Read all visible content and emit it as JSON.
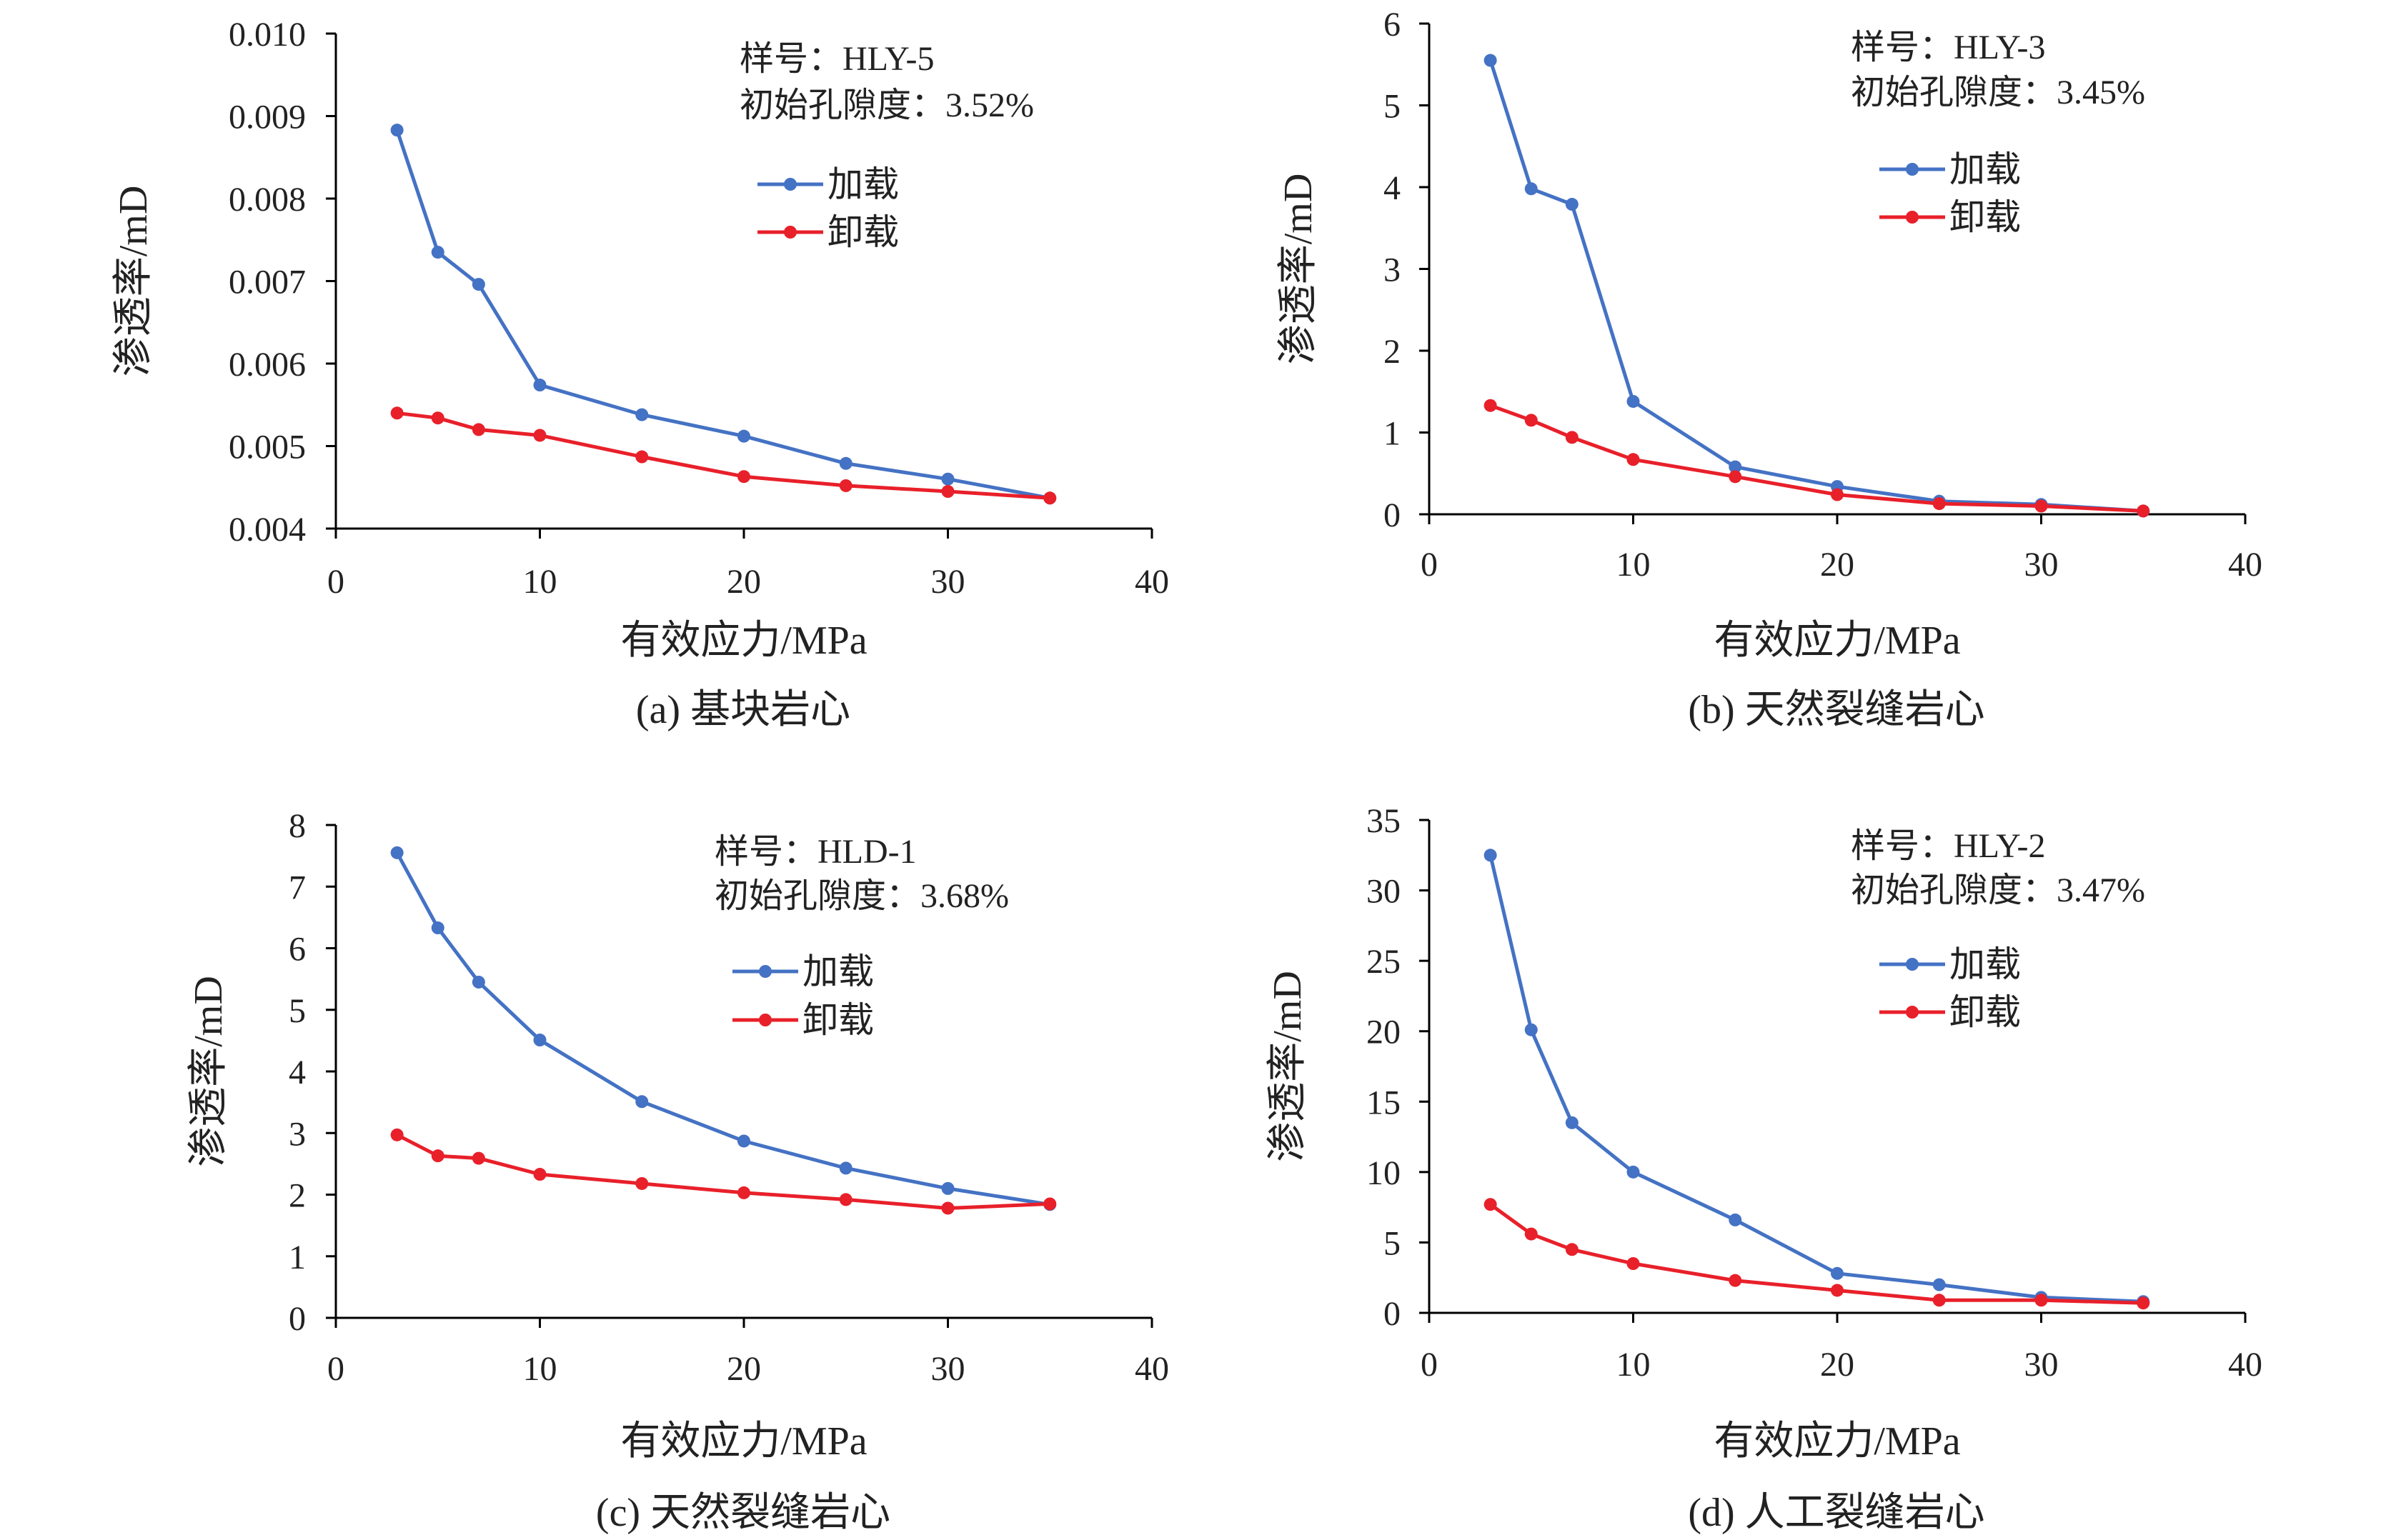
{
  "colors": {
    "loading": "#4472C4",
    "unloading": "#E8202A",
    "axis": "#000000"
  },
  "chart_data": [
    {
      "type": "line",
      "caption": "(a) 基块岩心",
      "sample": "样号：HLY-5",
      "porosity": "初始孔隙度：3.52%",
      "xlabel": "有效应力/MPa",
      "ylabel": "渗透率/mD",
      "xlim": [
        0,
        40
      ],
      "ylim": [
        0.004,
        0.01
      ],
      "xticks": [
        "0",
        "10",
        "20",
        "30",
        "40"
      ],
      "yticks": [
        "0.004",
        "0.005",
        "0.006",
        "0.007",
        "0.008",
        "0.009",
        "0.010"
      ],
      "legend": [
        "加载",
        "卸载"
      ],
      "series": [
        {
          "name": "加载",
          "x": [
            3,
            5,
            7,
            10,
            15,
            20,
            25,
            30,
            35
          ],
          "y": [
            0.00883,
            0.00735,
            0.00696,
            0.00574,
            0.00538,
            0.00512,
            0.00479,
            0.0046,
            0.00437
          ]
        },
        {
          "name": "卸载",
          "x": [
            3,
            5,
            7,
            10,
            15,
            20,
            25,
            30,
            35
          ],
          "y": [
            0.0054,
            0.00534,
            0.0052,
            0.00513,
            0.00487,
            0.00463,
            0.00452,
            0.00445,
            0.00437
          ]
        }
      ]
    },
    {
      "type": "line",
      "caption": "(b) 天然裂缝岩心",
      "sample": "样号：HLY-3",
      "porosity": "初始孔隙度：3.45%",
      "xlabel": "有效应力/MPa",
      "ylabel": "渗透率/mD",
      "xlim": [
        0,
        40
      ],
      "ylim": [
        0,
        6
      ],
      "xticks": [
        "0",
        "10",
        "20",
        "30",
        "40"
      ],
      "yticks": [
        "0",
        "1",
        "2",
        "3",
        "4",
        "5",
        "6"
      ],
      "legend": [
        "加载",
        "卸载"
      ],
      "series": [
        {
          "name": "加载",
          "x": [
            3,
            5,
            7,
            10,
            15,
            20,
            25,
            30,
            35
          ],
          "y": [
            5.55,
            3.98,
            3.79,
            1.38,
            0.58,
            0.34,
            0.16,
            0.12,
            0.04
          ]
        },
        {
          "name": "卸载",
          "x": [
            3,
            5,
            7,
            10,
            15,
            20,
            25,
            30,
            35
          ],
          "y": [
            1.33,
            1.15,
            0.94,
            0.67,
            0.46,
            0.24,
            0.13,
            0.1,
            0.04
          ]
        }
      ]
    },
    {
      "type": "line",
      "caption": "(c) 天然裂缝岩心",
      "sample": "样号：HLD-1",
      "porosity": "初始孔隙度：3.68%",
      "xlabel": "有效应力/MPa",
      "ylabel": "渗透率/mD",
      "xlim": [
        0,
        40
      ],
      "ylim": [
        0,
        8
      ],
      "xticks": [
        "0",
        "10",
        "20",
        "30",
        "40"
      ],
      "yticks": [
        "0",
        "1",
        "2",
        "3",
        "4",
        "5",
        "6",
        "7",
        "8"
      ],
      "legend": [
        "加载",
        "卸载"
      ],
      "series": [
        {
          "name": "加载",
          "x": [
            3,
            5,
            7,
            10,
            15,
            20,
            25,
            30,
            35
          ],
          "y": [
            7.55,
            6.33,
            5.45,
            4.51,
            3.51,
            2.87,
            2.43,
            2.1,
            1.84
          ]
        },
        {
          "name": "卸载",
          "x": [
            3,
            5,
            7,
            10,
            15,
            20,
            25,
            30,
            35
          ],
          "y": [
            2.97,
            2.63,
            2.59,
            2.33,
            2.18,
            2.03,
            1.92,
            1.78,
            1.85
          ]
        }
      ]
    },
    {
      "type": "line",
      "caption": "(d) 人工裂缝岩心",
      "sample": "样号：HLY-2",
      "porosity": "初始孔隙度：3.47%",
      "xlabel": "有效应力/MPa",
      "ylabel": "渗透率/mD",
      "xlim": [
        0,
        40
      ],
      "ylim": [
        0,
        35
      ],
      "xticks": [
        "0",
        "10",
        "20",
        "30",
        "40"
      ],
      "yticks": [
        "0",
        "5",
        "10",
        "15",
        "20",
        "25",
        "30",
        "35"
      ],
      "legend": [
        "加载",
        "卸载"
      ],
      "series": [
        {
          "name": "加载",
          "x": [
            3,
            5,
            7,
            10,
            15,
            20,
            25,
            30,
            35
          ],
          "y": [
            32.5,
            20.1,
            13.5,
            10.0,
            6.6,
            2.8,
            2.0,
            1.1,
            0.8
          ]
        },
        {
          "name": "卸载",
          "x": [
            3,
            5,
            7,
            10,
            15,
            20,
            25,
            30,
            35
          ],
          "y": [
            7.7,
            5.6,
            4.5,
            3.5,
            2.3,
            1.6,
            0.9,
            0.9,
            0.7
          ]
        }
      ]
    }
  ]
}
